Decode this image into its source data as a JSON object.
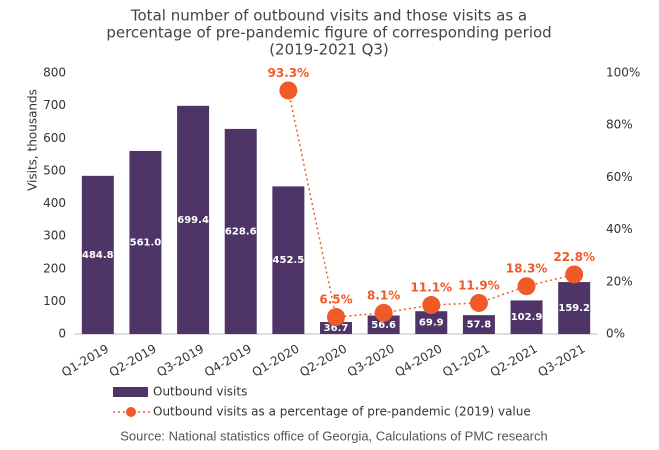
{
  "chart_data": {
    "type": "combo",
    "title": [
      "Total number of outbound visits and those visits as a",
      "percentage of pre-pandemic figure of corresponding period",
      "(2019-2021 Q3)"
    ],
    "y_label": "Visits, thousands",
    "source": "Source: National statistics office of Georgia, Calculations of PMC research",
    "categories": [
      "Q1-2019",
      "Q2-2019",
      "Q3-2019",
      "Q4-2019",
      "Q1-2020",
      "Q2-2020",
      "Q3-2020",
      "Q4-2020",
      "Q1-2021",
      "Q2-2021",
      "Q3-2021"
    ],
    "series": [
      {
        "name": "Outbound visits",
        "type": "bar",
        "color": "#4e3467",
        "values": [
          484.8,
          561.0,
          699.4,
          628.6,
          452.5,
          36.7,
          56.6,
          69.9,
          57.8,
          102.9,
          159.2
        ],
        "value_labels": [
          "484.8",
          "561.0",
          "699.4",
          "628.6",
          "452.5",
          "36.7",
          "56.6",
          "69.9",
          "57.8",
          "102.9",
          "159.2"
        ]
      },
      {
        "name": "Outbound visits as a percentage of pre-pandemic (2019) value",
        "type": "line",
        "axis": "y2",
        "color": "#f05a28",
        "values": [
          null,
          null,
          null,
          null,
          93.3,
          6.5,
          8.1,
          11.1,
          11.9,
          18.3,
          22.8
        ],
        "value_labels": [
          null,
          null,
          null,
          null,
          "93.3%",
          "6.5%",
          "8.1%",
          "11.1%",
          "11.9%",
          "18.3%",
          "22.8%"
        ]
      }
    ],
    "ylim": [
      0,
      800
    ],
    "yticks": [
      0,
      100,
      200,
      300,
      400,
      500,
      600,
      700,
      800
    ],
    "y2lim": [
      0,
      100
    ],
    "y2ticks": [
      {
        "value": 0,
        "label": "0%"
      },
      {
        "value": 20,
        "label": "20%"
      },
      {
        "value": 40,
        "label": "40%"
      },
      {
        "value": 60,
        "label": "60%"
      },
      {
        "value": 80,
        "label": "80%"
      },
      {
        "value": 100,
        "label": "100%"
      }
    ]
  }
}
